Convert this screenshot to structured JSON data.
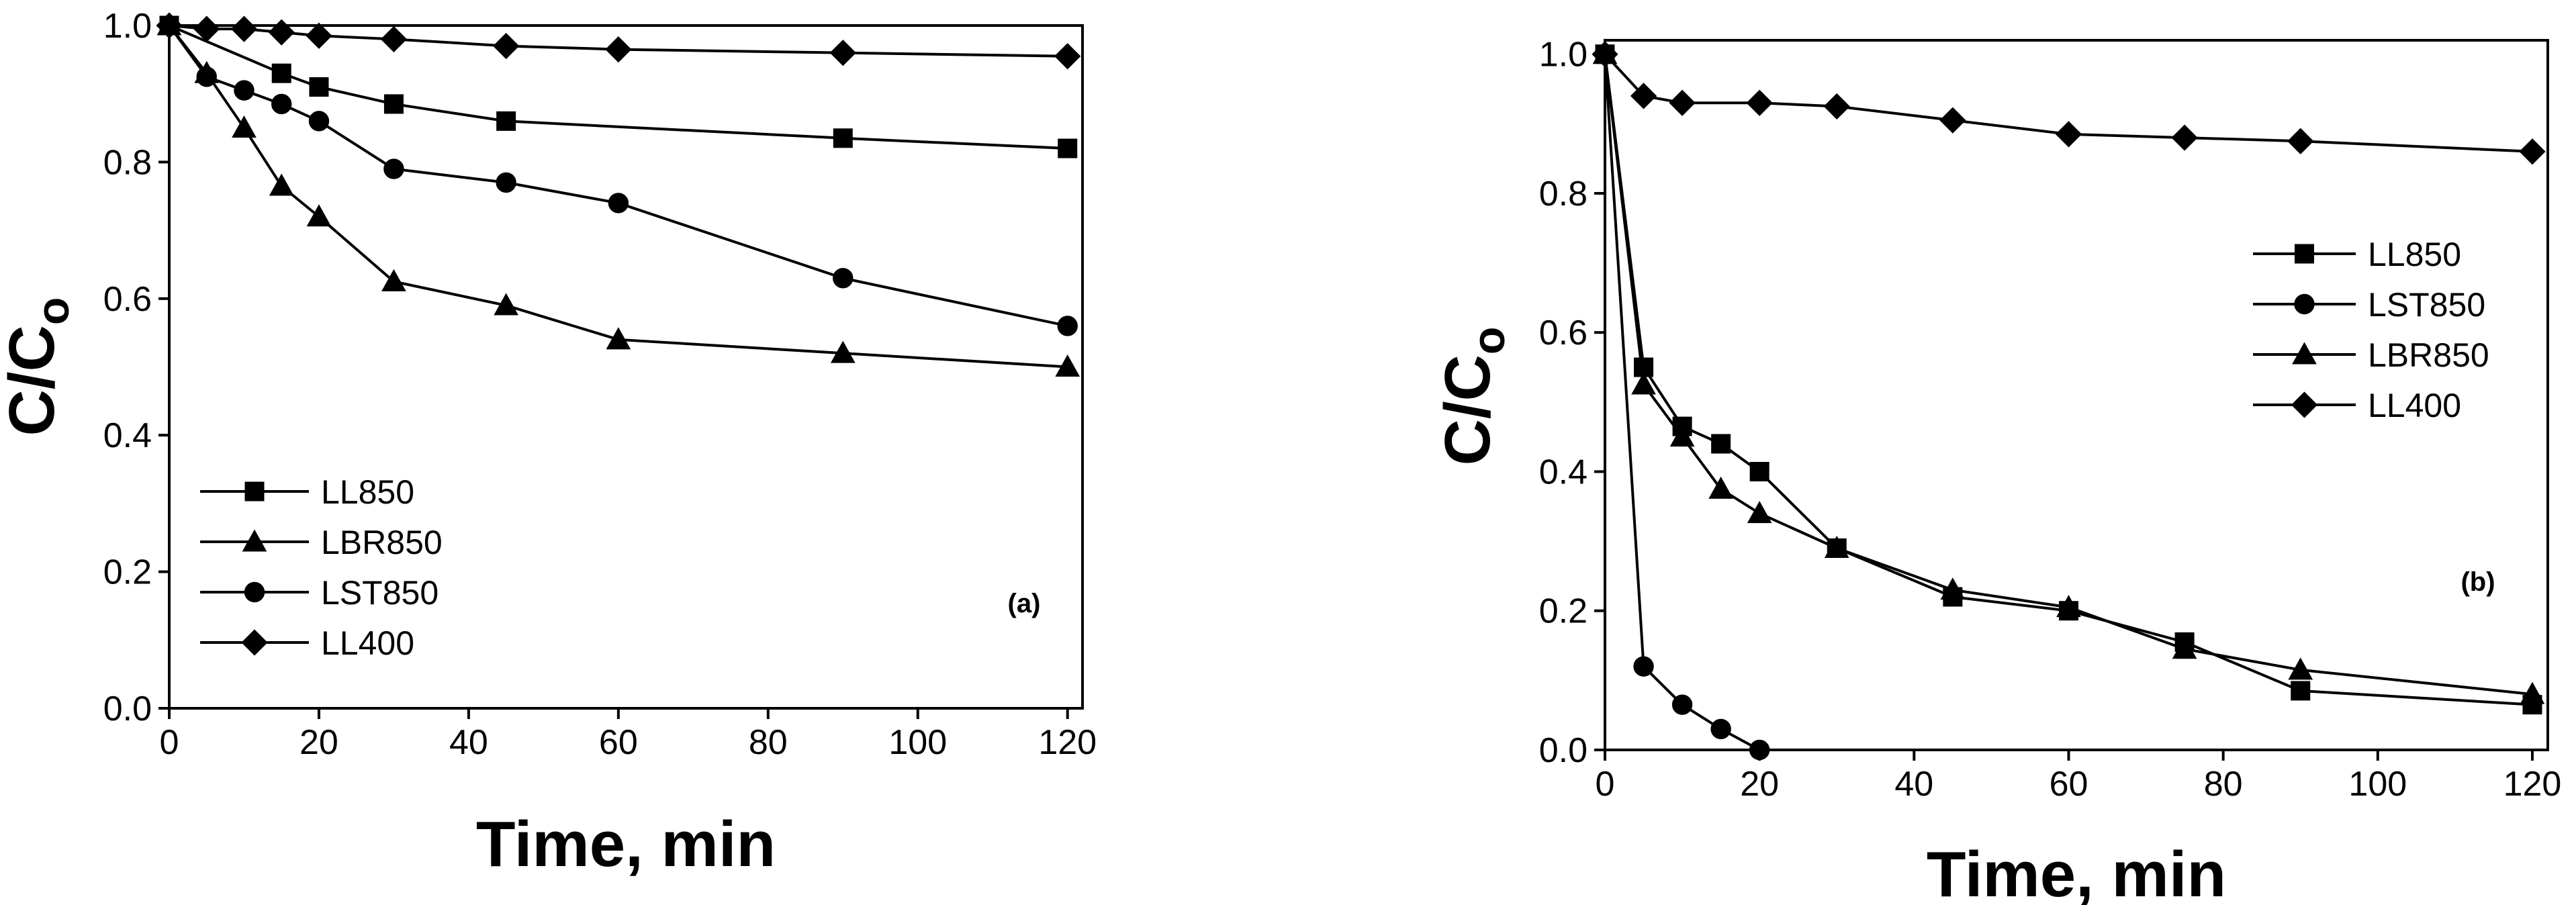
{
  "chart_data": [
    {
      "type": "line",
      "panel_label": "(a)",
      "xlabel": "Time, min",
      "ylabel": "C/C",
      "ylabel_subscript": "o",
      "xlim": [
        0,
        122
      ],
      "ylim": [
        0,
        1.0
      ],
      "xticks": [
        0,
        20,
        40,
        60,
        80,
        100,
        120
      ],
      "xtick_labels": [
        "0",
        "20",
        "40",
        "60",
        "80",
        "100",
        "120"
      ],
      "yticks": [
        0.0,
        0.2,
        0.4,
        0.6,
        0.8,
        1.0
      ],
      "ytick_labels": [
        "0.0",
        "0.2",
        "0.4",
        "0.6",
        "0.8",
        "1.0"
      ],
      "legend_position": "bottom-left",
      "series": [
        {
          "name": "LL850",
          "marker": "square",
          "x": [
            0,
            15,
            20,
            30,
            45,
            90,
            120
          ],
          "y": [
            1.0,
            0.93,
            0.91,
            0.885,
            0.86,
            0.835,
            0.82
          ]
        },
        {
          "name": "LBR850",
          "marker": "triangle",
          "x": [
            0,
            5,
            10,
            15,
            20,
            30,
            45,
            60,
            90,
            120
          ],
          "y": [
            1.0,
            0.93,
            0.85,
            0.765,
            0.72,
            0.625,
            0.59,
            0.54,
            0.52,
            0.5
          ]
        },
        {
          "name": "LST850",
          "marker": "circle",
          "x": [
            0,
            5,
            10,
            15,
            20,
            30,
            45,
            60,
            90,
            120
          ],
          "y": [
            1.0,
            0.925,
            0.905,
            0.885,
            0.86,
            0.79,
            0.77,
            0.74,
            0.63,
            0.56
          ]
        },
        {
          "name": "LL400",
          "marker": "diamond",
          "x": [
            0,
            5,
            10,
            15,
            20,
            30,
            45,
            60,
            90,
            120
          ],
          "y": [
            1.0,
            0.995,
            0.995,
            0.99,
            0.985,
            0.98,
            0.97,
            0.965,
            0.96,
            0.955
          ]
        }
      ]
    },
    {
      "type": "line",
      "panel_label": "(b)",
      "xlabel": "Time, min",
      "ylabel": "C/C",
      "ylabel_subscript": "o",
      "xlim": [
        0,
        122
      ],
      "ylim": [
        0,
        1.02
      ],
      "xticks": [
        0,
        20,
        40,
        60,
        80,
        100,
        120
      ],
      "xtick_labels": [
        "0",
        "20",
        "40",
        "60",
        "80",
        "100",
        "120"
      ],
      "yticks": [
        0.0,
        0.2,
        0.4,
        0.6,
        0.8,
        1.0
      ],
      "ytick_labels": [
        "0.0",
        "0.2",
        "0.4",
        "0.6",
        "0.8",
        "1.0"
      ],
      "legend_position": "top-right",
      "series": [
        {
          "name": "LL850",
          "marker": "square",
          "x": [
            0,
            5,
            10,
            15,
            20,
            30,
            45,
            60,
            75,
            90,
            120
          ],
          "y": [
            1.0,
            0.55,
            0.465,
            0.44,
            0.4,
            0.29,
            0.22,
            0.2,
            0.155,
            0.085,
            0.065
          ]
        },
        {
          "name": "LST850",
          "marker": "circle",
          "x": [
            0,
            5,
            10,
            15,
            20
          ],
          "y": [
            1.0,
            0.12,
            0.065,
            0.03,
            0.0
          ]
        },
        {
          "name": "LBR850",
          "marker": "triangle",
          "x": [
            0,
            5,
            10,
            15,
            20,
            30,
            45,
            60,
            75,
            90,
            120
          ],
          "y": [
            1.0,
            0.525,
            0.45,
            0.375,
            0.34,
            0.29,
            0.23,
            0.205,
            0.145,
            0.115,
            0.08
          ]
        },
        {
          "name": "LL400",
          "marker": "diamond",
          "x": [
            0,
            5,
            10,
            20,
            30,
            45,
            60,
            75,
            90,
            120
          ],
          "y": [
            1.0,
            0.94,
            0.93,
            0.93,
            0.925,
            0.905,
            0.885,
            0.88,
            0.875,
            0.86
          ]
        }
      ]
    }
  ]
}
